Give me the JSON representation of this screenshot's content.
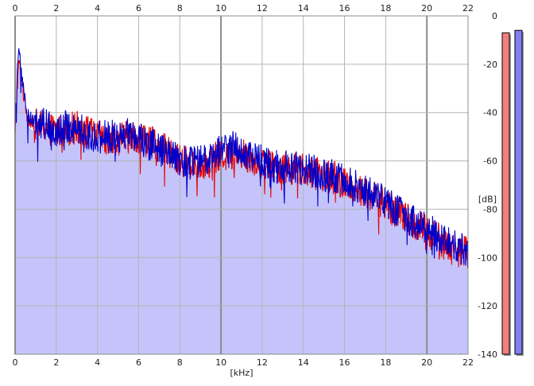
{
  "chart_data": {
    "type": "line",
    "title": "",
    "xlabel": "[kHz]",
    "ylabel": "[dB]",
    "xlim": [
      0,
      22
    ],
    "ylim": [
      -140,
      0
    ],
    "x_ticks": [
      "0",
      "2",
      "4",
      "6",
      "8",
      "10",
      "12",
      "14",
      "16",
      "18",
      "20",
      "22"
    ],
    "y_ticks": [
      "0",
      "-20",
      "-40",
      "-60",
      "-80",
      "-100",
      "-120",
      "-140"
    ],
    "grid": true,
    "fill_color": "#c4c4fa",
    "series": [
      {
        "color": "#e60000",
        "x": [
          0.0,
          0.1,
          0.2,
          0.3,
          0.4,
          0.6,
          0.8,
          1.0,
          1.5,
          2.0,
          2.5,
          3.0,
          3.5,
          4.0,
          4.5,
          5.0,
          5.5,
          6.0,
          6.5,
          7.0,
          7.5,
          8.0,
          8.5,
          9.0,
          9.5,
          10.0,
          10.5,
          11.0,
          11.5,
          12.0,
          12.5,
          13.0,
          13.5,
          14.0,
          14.5,
          15.0,
          15.5,
          16.0,
          16.5,
          17.0,
          17.5,
          18.0,
          18.5,
          19.0,
          19.5,
          20.0,
          20.5,
          21.0,
          21.5,
          22.0
        ],
        "values": [
          -50,
          -30,
          -18,
          -25,
          -32,
          -42,
          -44,
          -45,
          -46,
          -48,
          -47,
          -46,
          -48,
          -50,
          -51,
          -51,
          -50,
          -50,
          -52,
          -54,
          -57,
          -60,
          -61,
          -61,
          -60,
          -58,
          -57,
          -57,
          -59,
          -61,
          -62,
          -63,
          -63,
          -64,
          -65,
          -66,
          -67,
          -69,
          -71,
          -73,
          -75,
          -78,
          -81,
          -84,
          -87,
          -89,
          -92,
          -95,
          -97,
          -98
        ]
      },
      {
        "color": "#0000cc",
        "x": [
          0.0,
          0.1,
          0.2,
          0.3,
          0.4,
          0.6,
          0.8,
          1.0,
          1.5,
          2.0,
          2.5,
          3.0,
          3.5,
          4.0,
          4.5,
          5.0,
          5.5,
          6.0,
          6.5,
          7.0,
          7.5,
          8.0,
          8.5,
          9.0,
          9.5,
          10.0,
          10.5,
          11.0,
          11.5,
          12.0,
          12.5,
          13.0,
          13.5,
          14.0,
          14.5,
          15.0,
          15.5,
          16.0,
          16.5,
          17.0,
          17.5,
          18.0,
          18.5,
          19.0,
          19.5,
          20.0,
          20.5,
          21.0,
          21.5,
          22.0
        ],
        "values": [
          -45,
          -25,
          -14,
          -22,
          -30,
          -41,
          -43,
          -44,
          -45,
          -47,
          -46,
          -46,
          -49,
          -50,
          -50,
          -50,
          -49,
          -50,
          -53,
          -55,
          -58,
          -60,
          -61,
          -60,
          -59,
          -55,
          -54,
          -56,
          -58,
          -60,
          -62,
          -63,
          -62,
          -64,
          -64,
          -66,
          -66,
          -68,
          -70,
          -72,
          -74,
          -77,
          -80,
          -83,
          -86,
          -88,
          -91,
          -94,
          -96,
          -97
        ]
      }
    ],
    "level_meters": [
      {
        "color": "#f08080",
        "level_db": -7
      },
      {
        "color": "#8080f0",
        "level_db": -6
      }
    ]
  }
}
